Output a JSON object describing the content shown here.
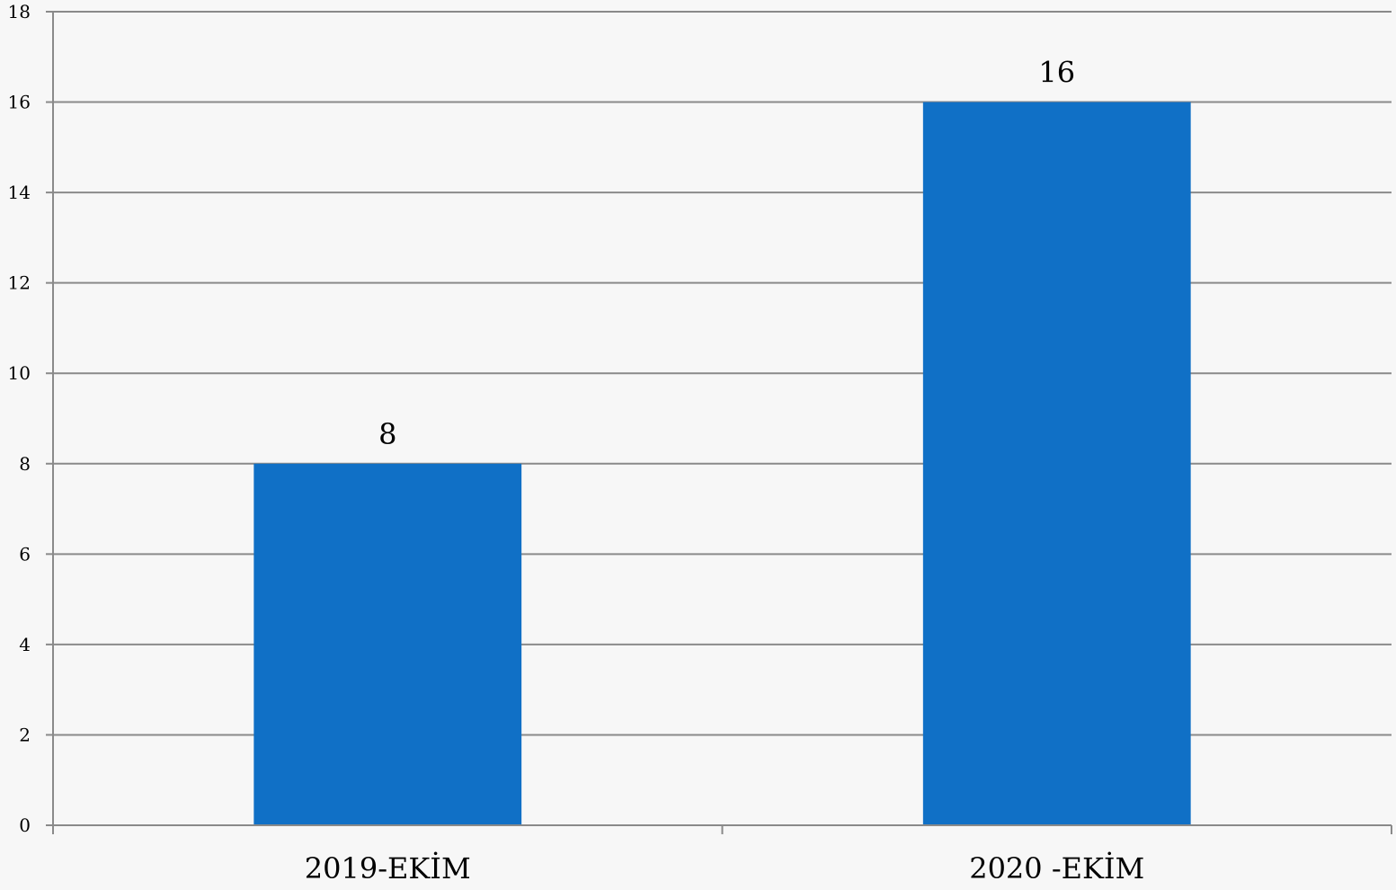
{
  "chart_data": {
    "type": "bar",
    "title": "",
    "xlabel": "",
    "ylabel": "",
    "categories": [
      "2019-EKİM",
      "2020 -EKİM"
    ],
    "values": [
      8,
      16
    ],
    "data_labels": [
      "8",
      "16"
    ],
    "ylim": [
      0,
      18
    ],
    "yticks": [
      0,
      2,
      4,
      6,
      8,
      10,
      12,
      14,
      16,
      18
    ],
    "ytick_labels": [
      "0",
      "2",
      "4",
      "6",
      "8",
      "10",
      "12",
      "14",
      "16",
      "18"
    ],
    "grid": true,
    "legend": "none",
    "bar_color": "#1070c6",
    "grid_color": "#8a8a8a",
    "axis_color": "#8a8a8a",
    "background_color": "#f7f7f7"
  }
}
